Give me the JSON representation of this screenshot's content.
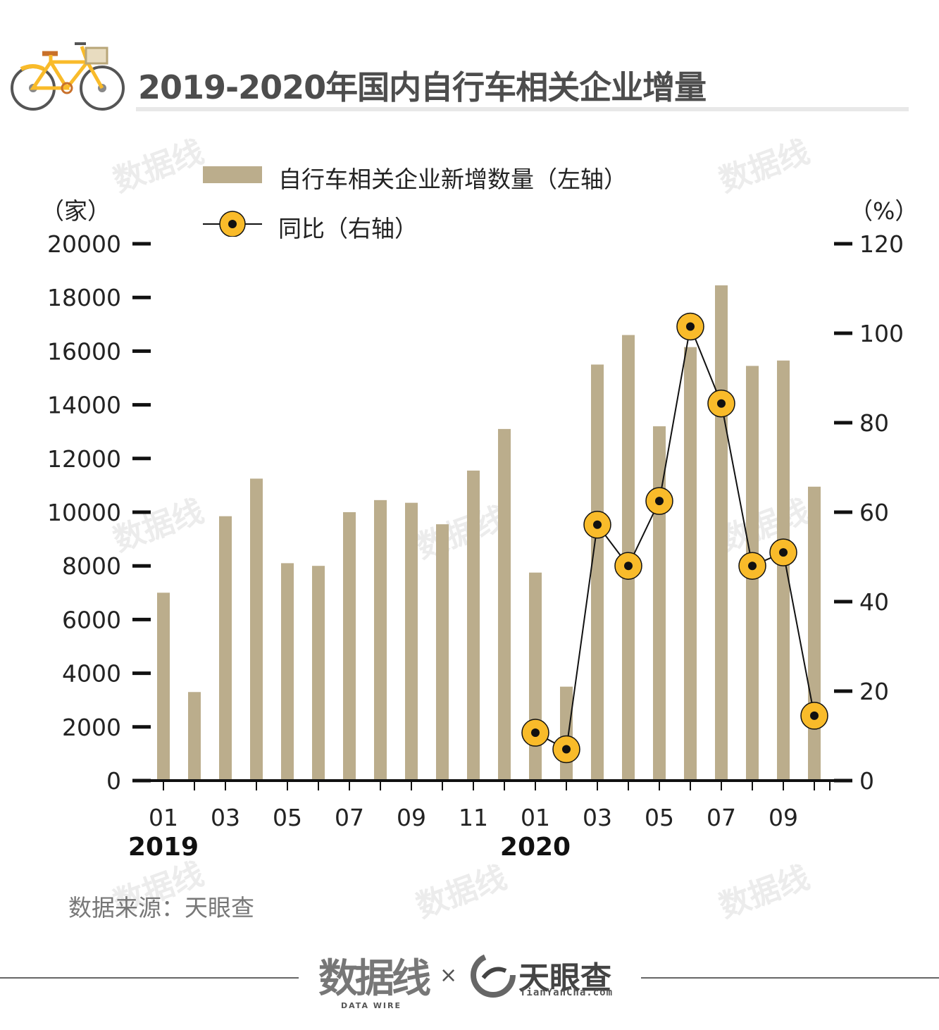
{
  "header": {
    "title": "2019-2020年国内自行车相关企业增量"
  },
  "legend": {
    "bar_label": "自行车相关企业新增数量（左轴）",
    "line_label": "同比（右轴）"
  },
  "units": {
    "left": "（家）",
    "right": "（%）"
  },
  "colors": {
    "bar": "#bbad8c",
    "marker": "#f9bb2a",
    "line": "#111111",
    "axis": "#111111"
  },
  "chart_data": {
    "type": "bar",
    "title": "2019-2020年国内自行车相关企业增量",
    "x": [
      "2019-01",
      "2019-02",
      "2019-03",
      "2019-04",
      "2019-05",
      "2019-06",
      "2019-07",
      "2019-08",
      "2019-09",
      "2019-10",
      "2019-11",
      "2019-12",
      "2020-01",
      "2020-02",
      "2020-03",
      "2020-04",
      "2020-05",
      "2020-06",
      "2020-07",
      "2020-08",
      "2020-09",
      "2020-10"
    ],
    "tick_labels": [
      "01",
      "",
      "03",
      "",
      "05",
      "",
      "07",
      "",
      "09",
      "",
      "11",
      "",
      "01",
      "",
      "03",
      "",
      "05",
      "",
      "07",
      "",
      "09",
      ""
    ],
    "year_labels": [
      {
        "index": 0,
        "label": "2019"
      },
      {
        "index": 12,
        "label": "2020"
      }
    ],
    "series": [
      {
        "name": "自行车相关企业新增数量（左轴）",
        "type": "bar",
        "axis": "left",
        "values": [
          7000,
          3300,
          9850,
          11250,
          8100,
          8000,
          10000,
          10450,
          10350,
          9550,
          11550,
          13100,
          7750,
          3500,
          15500,
          16600,
          13200,
          16150,
          18450,
          15450,
          15650,
          10950
        ]
      },
      {
        "name": "同比（右轴）",
        "type": "line",
        "axis": "right",
        "values": [
          null,
          null,
          null,
          null,
          null,
          null,
          null,
          null,
          null,
          null,
          null,
          null,
          10.7,
          7.0,
          57.2,
          48.0,
          62.5,
          101.5,
          84.3,
          48.0,
          51.0,
          14.5
        ]
      }
    ],
    "y_left": {
      "lim": [
        0,
        20000
      ],
      "ticks": [
        0,
        2000,
        4000,
        6000,
        8000,
        10000,
        12000,
        14000,
        16000,
        18000,
        20000
      ]
    },
    "y_right": {
      "lim": [
        0,
        120
      ],
      "ticks": [
        0,
        20,
        40,
        60,
        80,
        100,
        120
      ]
    },
    "xlabel": "",
    "ylabel_left": "（家）",
    "ylabel_right": "（%）",
    "grid": false
  },
  "source": "数据来源：天眼查",
  "footer": {
    "brand1": "数据线",
    "brand1_sub": "DATA WIRE",
    "times": "×",
    "brand2": "天眼查",
    "brand2_sub": "TianYanCha.com"
  },
  "watermark": "数据线"
}
